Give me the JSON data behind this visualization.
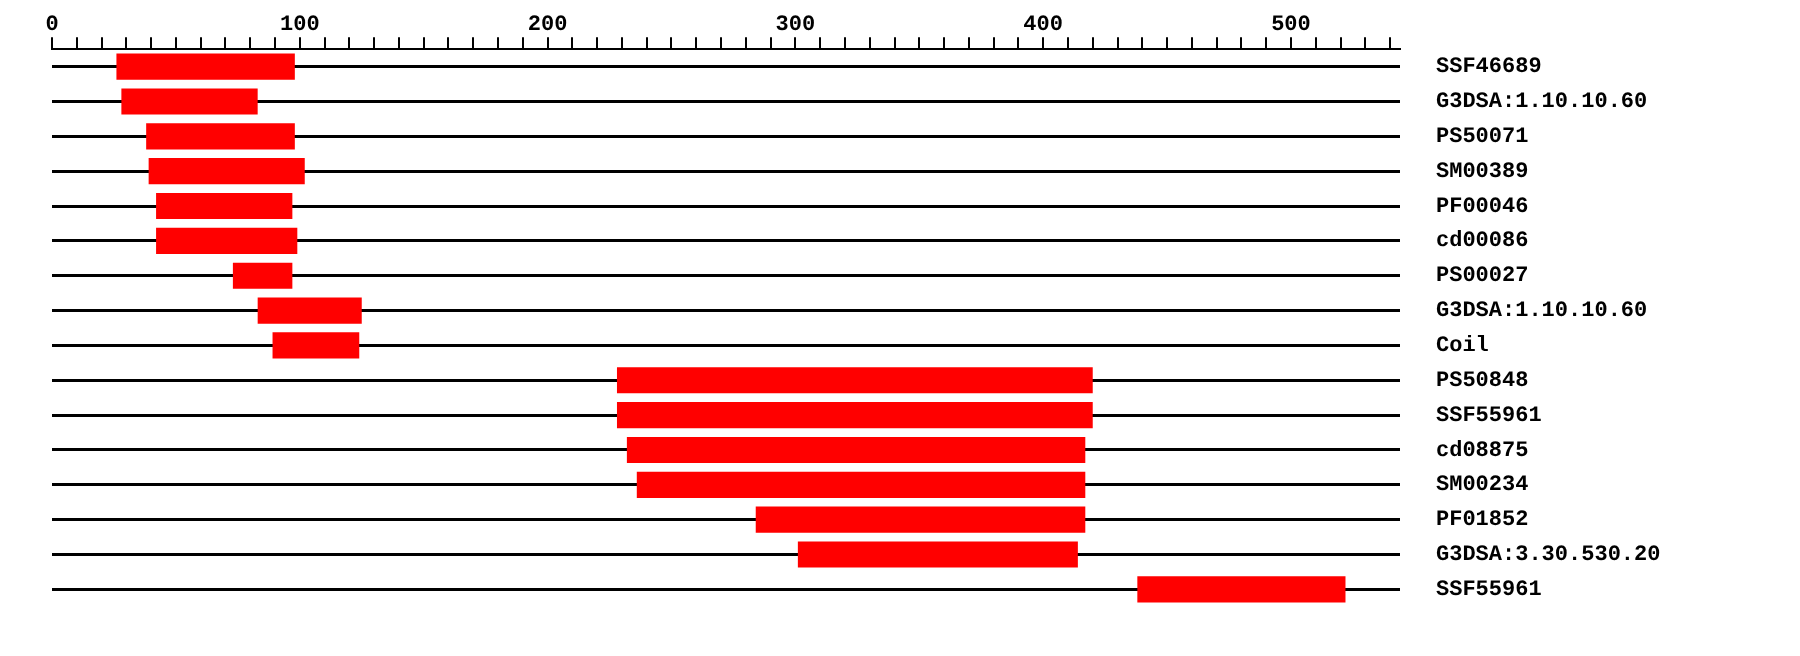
{
  "chart_data": {
    "type": "bar",
    "orientation": "horizontal",
    "categories": [
      "SSF46689",
      "G3DSA:1.10.10.60",
      "PS50071",
      "SM00389",
      "PF00046",
      "cd00086",
      "PS00027",
      "G3DSA:1.10.10.60",
      "Coil",
      "PS50848",
      "SSF55961",
      "cd08875",
      "SM00234",
      "PF01852",
      "G3DSA:3.30.530.20",
      "SSF55961"
    ],
    "base": [
      26,
      28,
      38,
      39,
      42,
      42,
      73,
      83,
      89,
      228,
      228,
      232,
      236,
      284,
      301,
      438
    ],
    "values": [
      72,
      55,
      60,
      63,
      55,
      57,
      24,
      42,
      35,
      192,
      192,
      185,
      181,
      133,
      113,
      84
    ],
    "color": "#ff0000",
    "xlim": [
      0,
      544
    ],
    "xticks": [
      0,
      {
        "value": 10,
        "label": null
      },
      {
        "value": 20,
        "label": null
      },
      {
        "value": 30,
        "label": null
      },
      {
        "value": 40,
        "label": null
      },
      {
        "value": 50,
        "label": null
      },
      {
        "value": 60,
        "label": null
      },
      {
        "value": 70,
        "label": null
      },
      {
        "value": 80,
        "label": null
      },
      {
        "value": 90,
        "label": null
      },
      100,
      {
        "value": 110,
        "label": null
      },
      {
        "value": 120,
        "label": null
      },
      {
        "value": 130,
        "label": null
      },
      {
        "value": 140,
        "label": null
      },
      {
        "value": 150,
        "label": null
      },
      {
        "value": 160,
        "label": null
      },
      {
        "value": 170,
        "label": null
      },
      {
        "value": 180,
        "label": null
      },
      {
        "value": 190,
        "label": null
      },
      200,
      {
        "value": 210,
        "label": null
      },
      {
        "value": 220,
        "label": null
      },
      {
        "value": 230,
        "label": null
      },
      {
        "value": 240,
        "label": null
      },
      {
        "value": 250,
        "label": null
      },
      {
        "value": 260,
        "label": null
      },
      {
        "value": 270,
        "label": null
      },
      {
        "value": 280,
        "label": null
      },
      {
        "value": 290,
        "label": null
      },
      300,
      {
        "value": 310,
        "label": null
      },
      {
        "value": 320,
        "label": null
      },
      {
        "value": 330,
        "label": null
      },
      {
        "value": 340,
        "label": null
      },
      {
        "value": 350,
        "label": null
      },
      {
        "value": 360,
        "label": null
      },
      {
        "value": 370,
        "label": null
      },
      {
        "value": 380,
        "label": null
      },
      {
        "value": 390,
        "label": null
      },
      400,
      {
        "value": 410,
        "label": null
      },
      {
        "value": 420,
        "label": null
      },
      {
        "value": 430,
        "label": null
      },
      {
        "value": 440,
        "label": null
      },
      {
        "value": 450,
        "label": null
      },
      {
        "value": 460,
        "label": null
      },
      {
        "value": 470,
        "label": null
      },
      {
        "value": 480,
        "label": null
      },
      {
        "value": 490,
        "label": null
      },
      500,
      {
        "value": 510,
        "label": null
      },
      {
        "value": 520,
        "label": null
      },
      {
        "value": 530,
        "label": null
      },
      {
        "value": 540,
        "label": null
      }
    ],
    "grid": "y",
    "legend": false
  }
}
